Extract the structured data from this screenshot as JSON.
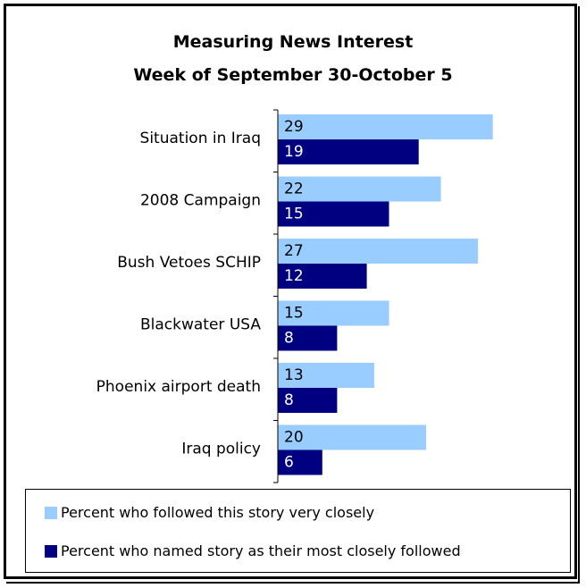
{
  "chart_data": {
    "type": "bar",
    "orientation": "horizontal",
    "title": "Measuring News Interest",
    "subtitle": "Week of September 30-October 5",
    "categories": [
      "Situation in Iraq",
      "2008 Campaign",
      "Bush Vetoes SCHIP",
      "Blackwater USA",
      "Phoenix airport death",
      "Iraq policy"
    ],
    "series": [
      {
        "name": "Percent who followed this story very closely",
        "values": [
          29,
          22,
          27,
          15,
          13,
          20
        ],
        "color": "#99ccff"
      },
      {
        "name": "Percent who named story as their most closely followed",
        "values": [
          19,
          15,
          12,
          8,
          8,
          6
        ],
        "color": "#000080"
      }
    ],
    "xlim": [
      0,
      35
    ],
    "grid": false,
    "legend_position": "bottom"
  }
}
